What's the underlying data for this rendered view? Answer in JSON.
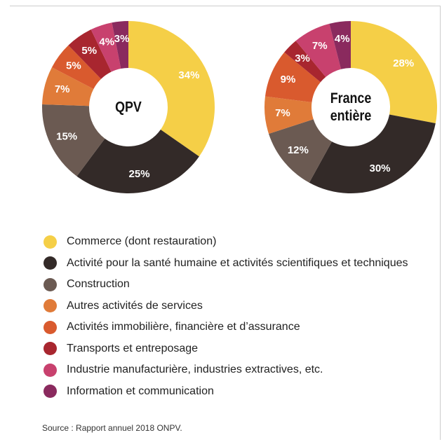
{
  "chart_data": [
    {
      "type": "pie",
      "donut": true,
      "center_label": "QPV",
      "categories": [
        "Commerce (dont restauration)",
        "Activité pour la santé humaine et activités scientifiques et techniques",
        "Construction",
        "Autres activités de services",
        "Activités immobilière, financière et d’assurance",
        "Transports et entreposage",
        "Industrie manufacturière, industries extractives, etc.",
        "Information et communication"
      ],
      "values": [
        34,
        25,
        15,
        7,
        5,
        5,
        4,
        3
      ],
      "value_labels": [
        "34%",
        "25%",
        "15%",
        "7%",
        "5%",
        "5%",
        "4%",
        "3%"
      ],
      "colors": [
        "#f5cf47",
        "#332a28",
        "#6b5a52",
        "#e07b39",
        "#d95a2e",
        "#a8262f",
        "#c8416e",
        "#8a2a5e"
      ]
    },
    {
      "type": "pie",
      "donut": true,
      "center_label": "France entière",
      "categories": [
        "Commerce (dont restauration)",
        "Activité pour la santé humaine et activités scientifiques et techniques",
        "Construction",
        "Autres activités de services",
        "Activités immobilière, financière et d’assurance",
        "Transports et entreposage",
        "Industrie manufacturière, industries extractives, etc.",
        "Information et communication"
      ],
      "values": [
        28,
        30,
        12,
        7,
        9,
        3,
        7,
        4
      ],
      "value_labels": [
        "28%",
        "30%",
        "12%",
        "7%",
        "9%",
        "3%",
        "7%",
        "4%"
      ],
      "colors": [
        "#f5cf47",
        "#332a28",
        "#6b5a52",
        "#e07b39",
        "#d95a2e",
        "#a8262f",
        "#c8416e",
        "#8a2a5e"
      ]
    }
  ],
  "source": "Source : Rapport annuel 2018 ONPV."
}
